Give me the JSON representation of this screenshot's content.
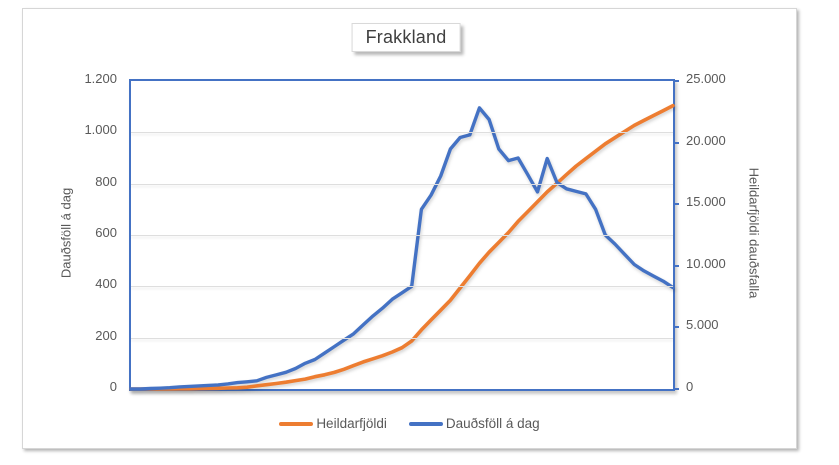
{
  "chart": {
    "title": "Frakkland",
    "colors": {
      "series_total": "#ED7D31",
      "series_daily": "#4472C4",
      "plot_border": "#4472C4",
      "gridline": "#DEDEDE",
      "axis_text": "#595959",
      "title_text": "#3F3F3F",
      "frame_border": "#D6D6D6"
    },
    "left_axis": {
      "title": "Dauðsföll á dag",
      "tick_labels": [
        "0",
        "200",
        "400",
        "600",
        "800",
        "1.000",
        "1.200"
      ],
      "tick_values": [
        0,
        200,
        400,
        600,
        800,
        1000,
        1200
      ]
    },
    "right_axis": {
      "title": "Heildarfjöldi dauðsfalla",
      "tick_labels": [
        "0",
        "5.000",
        "10.000",
        "15.000",
        "20.000",
        "25.000"
      ],
      "tick_values": [
        0,
        5000,
        10000,
        15000,
        20000,
        25000
      ]
    },
    "legend": [
      {
        "label": "Heildarfjöldi",
        "color": "#ED7D31"
      },
      {
        "label": "Dauðsföll á dag",
        "color": "#4472C4"
      }
    ]
  },
  "chart_data": {
    "type": "line",
    "title": "Frakkland",
    "x_axis": {
      "tick_labels": "none",
      "points": 57
    },
    "left_axis": {
      "label": "Dauðsföll á dag",
      "range": [
        0,
        1200
      ],
      "tick_step": 200
    },
    "right_axis": {
      "label": "Heildarfjöldi dauðsfalla",
      "range": [
        0,
        25000
      ],
      "tick_step": 5000
    },
    "grid": "horizontal",
    "legend_position": "bottom",
    "series": [
      {
        "name": "Heildarfjöldi",
        "axis": "right",
        "color": "#ED7D31",
        "values": [
          0,
          0,
          0,
          5,
          10,
          15,
          20,
          30,
          40,
          60,
          80,
          100,
          150,
          250,
          350,
          450,
          550,
          680,
          800,
          1000,
          1150,
          1350,
          1600,
          1900,
          2200,
          2450,
          2700,
          3000,
          3350,
          3900,
          4800,
          5600,
          6400,
          7200,
          8200,
          9200,
          10200,
          11100,
          11900,
          12700,
          13600,
          14400,
          15200,
          16000,
          16700,
          17400,
          18100,
          18700,
          19300,
          19900,
          20400,
          20900,
          21400,
          21800,
          22200,
          22600,
          23000
        ]
      },
      {
        "name": "Dauðsföll á dag",
        "axis": "left",
        "color": "#4472C4",
        "values": [
          0,
          0,
          2,
          3,
          5,
          8,
          10,
          12,
          14,
          16,
          20,
          25,
          28,
          32,
          45,
          55,
          65,
          80,
          100,
          115,
          140,
          165,
          190,
          215,
          250,
          285,
          315,
          350,
          375,
          400,
          700,
          755,
          830,
          935,
          980,
          990,
          1095,
          1050,
          935,
          890,
          900,
          835,
          768,
          898,
          805,
          780,
          770,
          760,
          700,
          600,
          565,
          525,
          485,
          460,
          440,
          420,
          395
        ]
      }
    ]
  }
}
